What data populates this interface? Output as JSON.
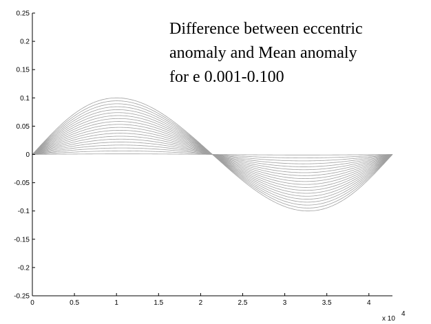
{
  "chart_data": {
    "type": "line",
    "title_lines": [
      "Difference between eccentric",
      "anomaly and Mean anomaly",
      "for e 0.001-0.100"
    ],
    "xlabel": "",
    "ylabel": "",
    "x_multiplier_label": "x 10",
    "x_multiplier_exp": "4",
    "xlim": [
      0,
      4.28
    ],
    "ylim": [
      -0.25,
      0.25
    ],
    "xticks": [
      0,
      0.5,
      1,
      1.5,
      2,
      2.5,
      3,
      3.5,
      4
    ],
    "xtick_labels": [
      "0",
      "0.5",
      "1",
      "1.5",
      "2",
      "2.5",
      "3",
      "3.5",
      "4"
    ],
    "yticks": [
      0.25,
      0.2,
      0.15,
      0.1,
      0.05,
      0,
      -0.05,
      -0.1,
      -0.15,
      -0.2,
      -0.25
    ],
    "ytick_labels": [
      "0.25",
      "0.2",
      "0.15",
      "0.1",
      "0.05",
      "0",
      "-0.05",
      "-0.1",
      "-0.15",
      "-0.2",
      "-0.25"
    ],
    "series_eccentricities_min": 0.001,
    "series_eccentricities_max": 0.1,
    "series_count": 20,
    "x_period": 4.28,
    "grid": false,
    "colors": {
      "series": "#a0a0a0",
      "axis": "#000000"
    }
  }
}
